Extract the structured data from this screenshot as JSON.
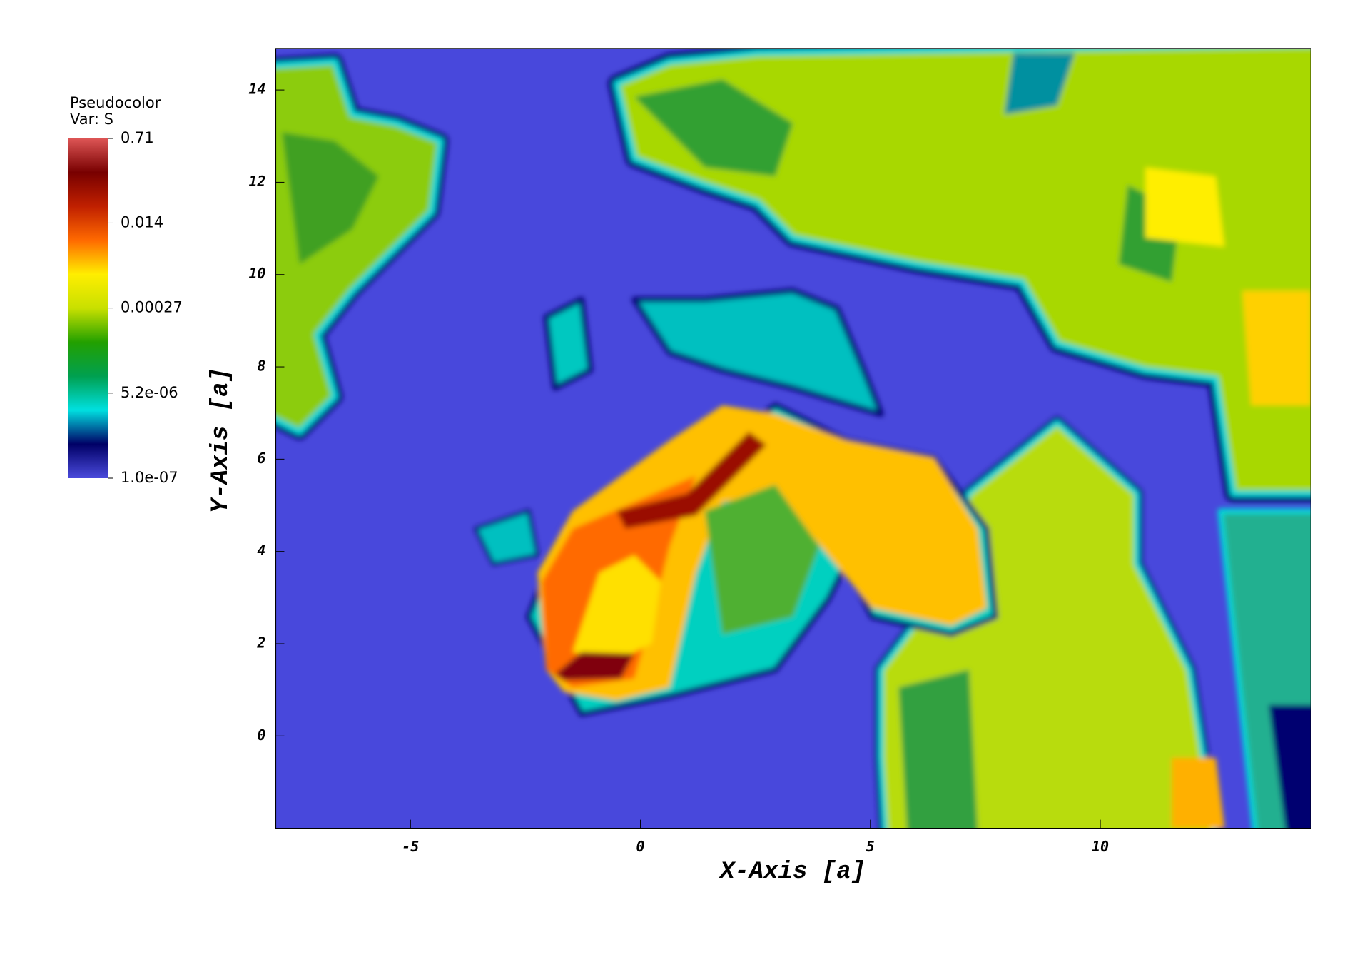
{
  "chart_data": {
    "type": "pseudocolor",
    "legend_title": "Pseudocolor",
    "legend_var": "Var: S",
    "x_label": "X-Axis [a]",
    "y_label": "Y-Axis [a]",
    "xlim": [
      -7.93,
      14.58
    ],
    "xticks": [
      -5,
      0,
      5,
      10
    ],
    "ylim": [
      -2,
      14.9
    ],
    "yticks": [
      0,
      2,
      4,
      6,
      8,
      10,
      12,
      14
    ],
    "colorbar": {
      "scale": "log",
      "lim": [
        1e-07,
        0.71
      ],
      "ticks": [
        0.71,
        0.014,
        0.00027,
        {
          "value": 5.2e-06,
          "label": "5.2e-06"
        },
        {
          "value": 1e-07,
          "label": "1.0e-07"
        }
      ],
      "colors": [
        "#4a4adc",
        "#000066",
        "#00e0e0",
        "#00a050",
        "#22a000",
        "#c8e000",
        "#ffee00",
        "#ff6a00",
        "#c02000",
        "#780000",
        "#dd5555"
      ]
    }
  }
}
